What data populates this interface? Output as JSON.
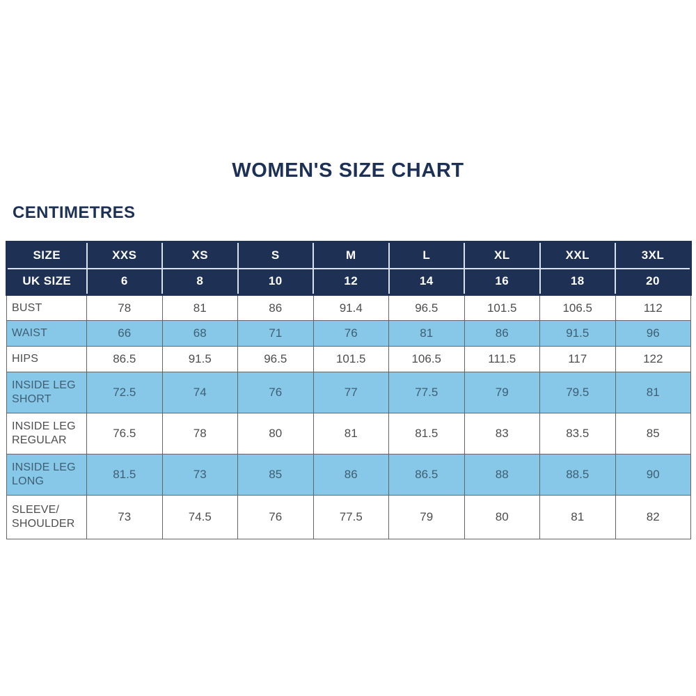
{
  "page": {
    "title": "WOMEN'S SIZE CHART",
    "unit_label": "CENTIMETRES"
  },
  "colors": {
    "navy": "#1e3054",
    "title_navy": "#1d3156",
    "light_blue_row": "#87c8e9",
    "white_row_text": "#4d4d4f",
    "blue_row_text": "#3f5e72",
    "body_grid_line": "#636466",
    "header_grid_line": "#d9e2ec"
  },
  "chart_data": {
    "type": "table",
    "title": "WOMEN'S SIZE CHART",
    "unit": "CENTIMETRES",
    "columns": [
      "SIZE",
      "XXS",
      "XS",
      "S",
      "M",
      "L",
      "XL",
      "XXL",
      "3XL"
    ],
    "uk_size_row": {
      "label": "UK SIZE",
      "values": [
        "6",
        "8",
        "10",
        "12",
        "14",
        "16",
        "18",
        "20"
      ]
    },
    "rows": [
      {
        "label": "BUST",
        "values": [
          "78",
          "81",
          "86",
          "91.4",
          "96.5",
          "101.5",
          "106.5",
          "112"
        ]
      },
      {
        "label": "WAIST",
        "values": [
          "66",
          "68",
          "71",
          "76",
          "81",
          "86",
          "91.5",
          "96"
        ]
      },
      {
        "label": "HIPS",
        "values": [
          "86.5",
          "91.5",
          "96.5",
          "101.5",
          "106.5",
          "111.5",
          "117",
          "122"
        ]
      },
      {
        "label": "INSIDE LEG SHORT",
        "values": [
          "72.5",
          "74",
          "76",
          "77",
          "77.5",
          "79",
          "79.5",
          "81"
        ]
      },
      {
        "label": "INSIDE LEG REGULAR",
        "values": [
          "76.5",
          "78",
          "80",
          "81",
          "81.5",
          "83",
          "83.5",
          "85"
        ]
      },
      {
        "label": "INSIDE LEG LONG",
        "values": [
          "81.5",
          "73",
          "85",
          "86",
          "86.5",
          "88",
          "88.5",
          "90"
        ]
      },
      {
        "label": "SLEEVE/ SHOULDER",
        "values": [
          "73",
          "74.5",
          "76",
          "77.5",
          "79",
          "80",
          "81",
          "82"
        ]
      }
    ]
  }
}
